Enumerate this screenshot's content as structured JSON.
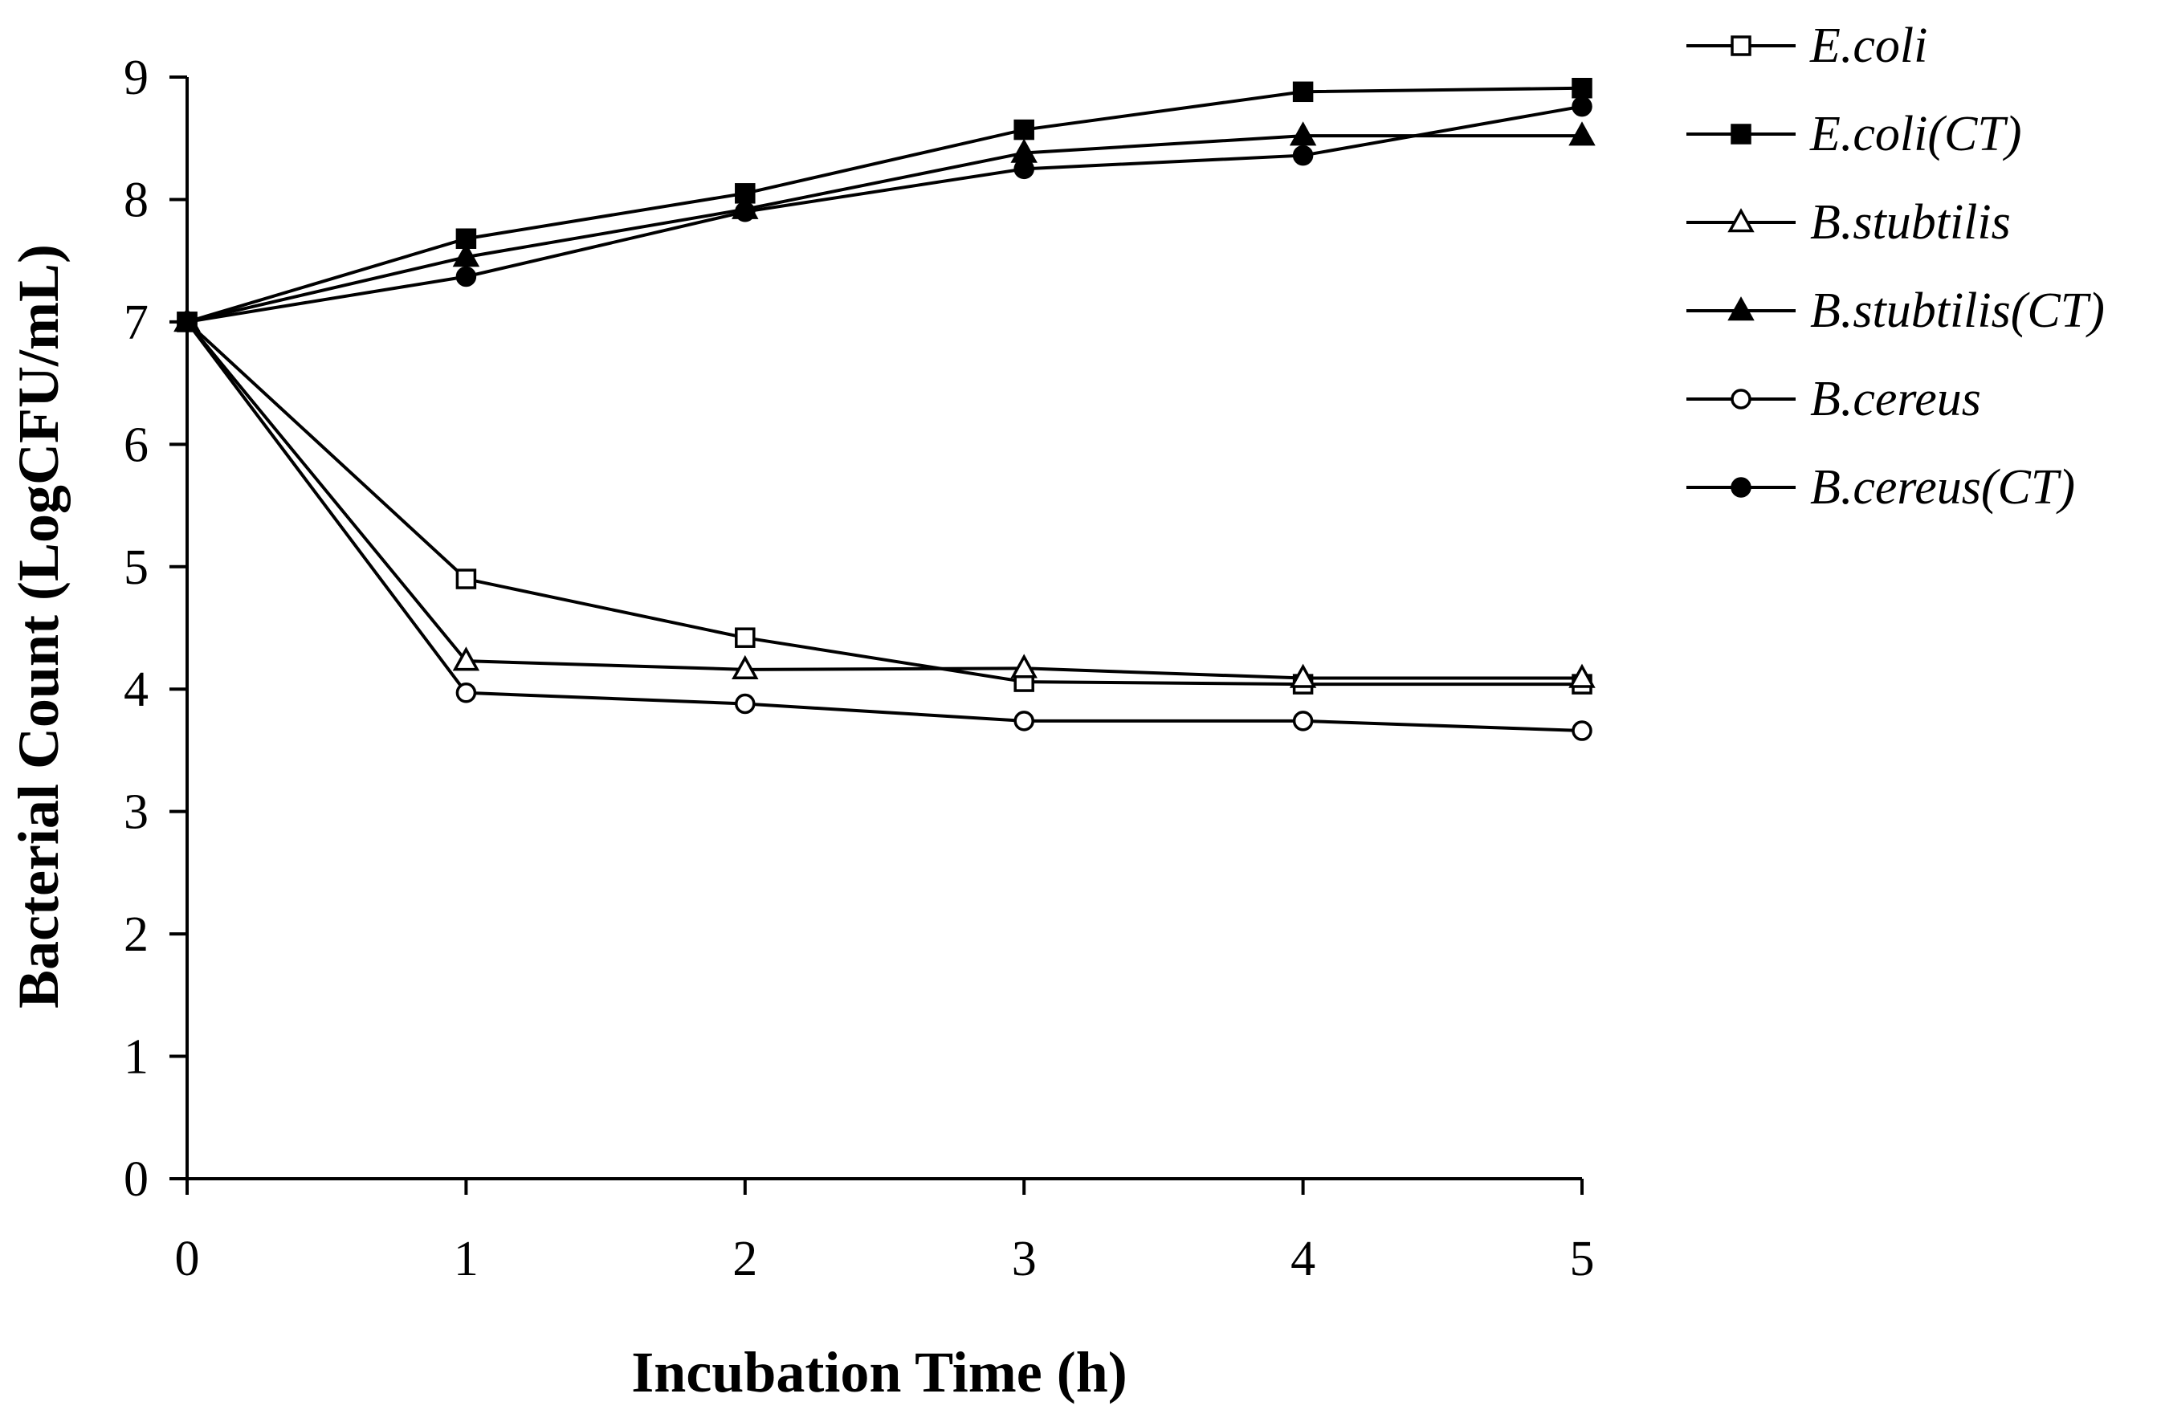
{
  "chart_data": {
    "type": "line",
    "title": "",
    "xlabel": "Incubation Time (h)",
    "ylabel": "Bacterial Count (LogCFU/mL)",
    "x": [
      0,
      1,
      2,
      3,
      4,
      5
    ],
    "xlim": [
      0,
      5
    ],
    "ylim": [
      0,
      9
    ],
    "xticks": [
      "0",
      "1",
      "2",
      "3",
      "4",
      "5"
    ],
    "yticks": [
      "0",
      "1",
      "2",
      "3",
      "4",
      "5",
      "6",
      "7",
      "8",
      "9"
    ],
    "grid": false,
    "legend_position": "right",
    "series": [
      {
        "name": "E.coli",
        "marker": "square-open",
        "values": [
          7.0,
          4.9,
          4.42,
          4.06,
          4.04,
          4.04
        ]
      },
      {
        "name": "E.coli(CT)",
        "marker": "square-filled",
        "values": [
          7.0,
          7.68,
          8.05,
          8.57,
          8.88,
          8.91
        ]
      },
      {
        "name": "B.stubtilis",
        "marker": "triangle-open",
        "values": [
          7.0,
          4.23,
          4.16,
          4.17,
          4.09,
          4.09
        ]
      },
      {
        "name": "B.stubtilis(CT)",
        "marker": "triangle-filled",
        "values": [
          7.0,
          7.53,
          7.92,
          8.38,
          8.52,
          8.52
        ]
      },
      {
        "name": "B.cereus",
        "marker": "circle-open",
        "values": [
          7.0,
          3.97,
          3.88,
          3.74,
          3.74,
          3.66
        ]
      },
      {
        "name": "B.cereus(CT)",
        "marker": "circle-filled",
        "values": [
          7.0,
          7.37,
          7.9,
          8.25,
          8.36,
          8.76
        ]
      }
    ]
  }
}
